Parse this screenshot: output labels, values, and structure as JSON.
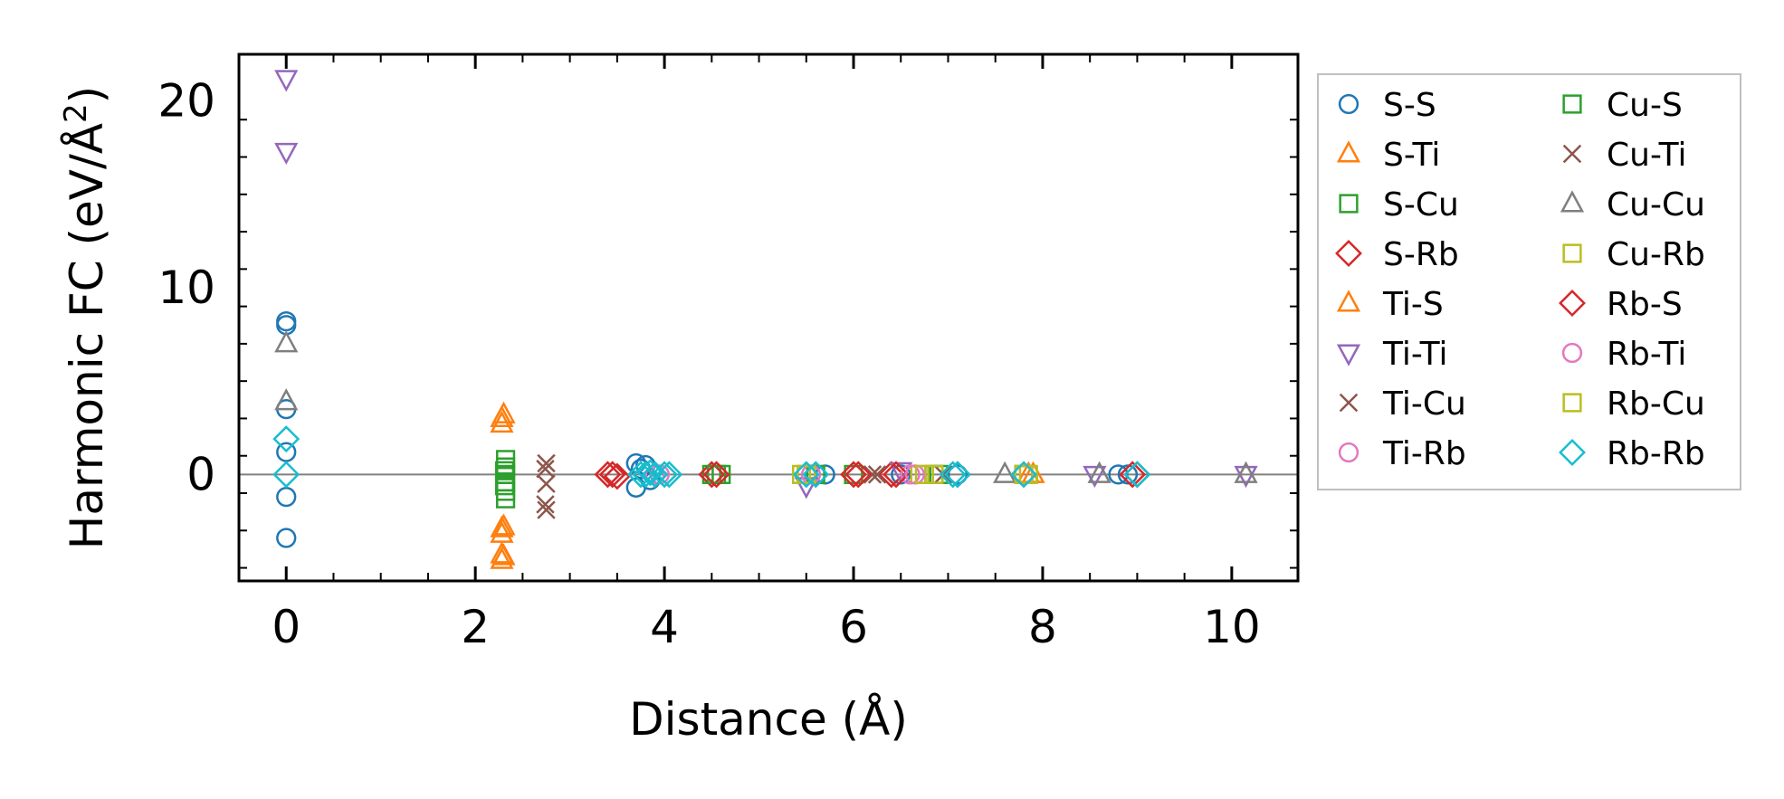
{
  "chart_data": {
    "type": "scatter",
    "xlabel": "Distance (Å)",
    "ylabel_main": "Harmonic FC (eV/Å",
    "ylabel_sup": "2",
    "ylabel_close": ")",
    "xlim": [
      -0.5,
      10.7
    ],
    "ylim": [
      -5.7,
      22.5
    ],
    "x_ticks": [
      0,
      2,
      4,
      6,
      8,
      10
    ],
    "y_ticks": [
      0,
      10,
      20
    ],
    "reference_line_y": 0,
    "legend_location": "outside-right",
    "series": [
      {
        "name": "S-S",
        "marker": "circle",
        "color": "#1f77b4",
        "points": [
          [
            0,
            8.2
          ],
          [
            0,
            8.0
          ],
          [
            0,
            3.5
          ],
          [
            0,
            1.2
          ],
          [
            0,
            -1.2
          ],
          [
            0,
            -3.4
          ],
          [
            3.7,
            0.6
          ],
          [
            3.7,
            -0.7
          ],
          [
            3.75,
            0.3
          ],
          [
            3.8,
            0.5
          ],
          [
            3.85,
            -0.3
          ],
          [
            5.6,
            0
          ],
          [
            5.7,
            0
          ],
          [
            6.5,
            0
          ],
          [
            7.1,
            0
          ],
          [
            8.8,
            0
          ],
          [
            8.9,
            0
          ]
        ]
      },
      {
        "name": "S-Ti",
        "marker": "triangle-up",
        "color": "#ff7f0e",
        "points": [
          [
            2.28,
            3.0
          ],
          [
            2.28,
            2.7
          ],
          [
            2.28,
            -2.9
          ],
          [
            2.28,
            -3.2
          ],
          [
            2.28,
            -4.3
          ],
          [
            2.28,
            -4.6
          ],
          [
            7.9,
            0
          ]
        ]
      },
      {
        "name": "S-Cu",
        "marker": "square",
        "color": "#2ca02c",
        "points": [
          [
            2.32,
            0.8
          ],
          [
            2.32,
            0.4
          ],
          [
            2.32,
            0
          ],
          [
            2.32,
            -0.4
          ],
          [
            2.32,
            -0.9
          ],
          [
            2.32,
            -1.3
          ],
          [
            4.5,
            0
          ],
          [
            4.6,
            0
          ],
          [
            5.6,
            0
          ],
          [
            6.0,
            0
          ],
          [
            6.9,
            0
          ],
          [
            7.8,
            0
          ]
        ]
      },
      {
        "name": "S-Rb",
        "marker": "diamond",
        "color": "#d62728",
        "points": [
          [
            3.45,
            0
          ],
          [
            3.5,
            -0.1
          ],
          [
            4.5,
            0
          ],
          [
            6.0,
            0
          ],
          [
            6.4,
            0
          ],
          [
            7.1,
            0
          ],
          [
            8.95,
            0
          ]
        ]
      },
      {
        "name": "Ti-S",
        "marker": "triangle-up",
        "color": "#ff7f0e",
        "points": [
          [
            2.3,
            3.2
          ],
          [
            2.3,
            -2.8
          ],
          [
            2.3,
            -4.4
          ],
          [
            7.85,
            0
          ]
        ]
      },
      {
        "name": "Ti-Ti",
        "marker": "triangle-down",
        "color": "#9467bd",
        "points": [
          [
            0,
            21.2
          ],
          [
            0,
            17.3
          ],
          [
            5.5,
            -0.6
          ],
          [
            6.5,
            0.2
          ],
          [
            8.55,
            0
          ],
          [
            10.15,
            0
          ]
        ]
      },
      {
        "name": "Ti-Cu",
        "marker": "x",
        "color": "#8c564b",
        "points": [
          [
            2.75,
            0.6
          ],
          [
            2.75,
            -0.5
          ],
          [
            2.75,
            -1.9
          ],
          [
            6.2,
            0
          ],
          [
            6.95,
            0
          ]
        ]
      },
      {
        "name": "Ti-Rb",
        "marker": "circle",
        "color": "#e377c2",
        "points": [
          [
            3.9,
            0
          ],
          [
            5.5,
            0
          ],
          [
            6.6,
            0
          ],
          [
            7.8,
            0
          ]
        ]
      },
      {
        "name": "Cu-S",
        "marker": "square",
        "color": "#2ca02c",
        "points": [
          [
            2.31,
            0.2
          ],
          [
            2.31,
            -0.6
          ],
          [
            4.55,
            0
          ],
          [
            6.85,
            0
          ]
        ]
      },
      {
        "name": "Cu-Ti",
        "marker": "x",
        "color": "#8c564b",
        "points": [
          [
            2.74,
            0.3
          ],
          [
            2.74,
            -1.6
          ],
          [
            6.25,
            0
          ]
        ]
      },
      {
        "name": "Cu-Cu",
        "marker": "triangle-up",
        "color": "#7f7f7f",
        "points": [
          [
            0,
            7.0
          ],
          [
            0,
            3.9
          ],
          [
            7.6,
            0
          ],
          [
            8.6,
            0
          ],
          [
            10.15,
            0
          ]
        ]
      },
      {
        "name": "Cu-Rb",
        "marker": "square",
        "color": "#bcbd22",
        "points": [
          [
            5.45,
            0
          ],
          [
            5.5,
            0
          ],
          [
            6.7,
            0
          ],
          [
            6.85,
            0
          ],
          [
            7.8,
            0
          ]
        ]
      },
      {
        "name": "Rb-S",
        "marker": "diamond",
        "color": "#d62728",
        "points": [
          [
            3.4,
            0
          ],
          [
            4.55,
            0
          ],
          [
            6.05,
            0
          ],
          [
            6.45,
            0
          ],
          [
            9.0,
            0
          ]
        ]
      },
      {
        "name": "Rb-Ti",
        "marker": "circle",
        "color": "#e377c2",
        "points": [
          [
            3.95,
            0
          ],
          [
            5.55,
            0
          ],
          [
            6.65,
            0
          ]
        ]
      },
      {
        "name": "Rb-Cu",
        "marker": "square",
        "color": "#bcbd22",
        "points": [
          [
            5.5,
            0
          ],
          [
            6.75,
            0
          ],
          [
            7.85,
            0
          ]
        ]
      },
      {
        "name": "Rb-Rb",
        "marker": "diamond",
        "color": "#17becf",
        "points": [
          [
            0,
            1.9
          ],
          [
            0,
            0
          ],
          [
            3.75,
            0
          ],
          [
            3.8,
            0
          ],
          [
            3.85,
            0.1
          ],
          [
            3.9,
            0
          ],
          [
            4.0,
            0
          ],
          [
            4.05,
            0
          ],
          [
            5.5,
            0
          ],
          [
            5.6,
            0
          ],
          [
            7.05,
            0
          ],
          [
            7.1,
            0
          ],
          [
            7.8,
            0
          ],
          [
            9.0,
            0
          ]
        ]
      }
    ]
  }
}
